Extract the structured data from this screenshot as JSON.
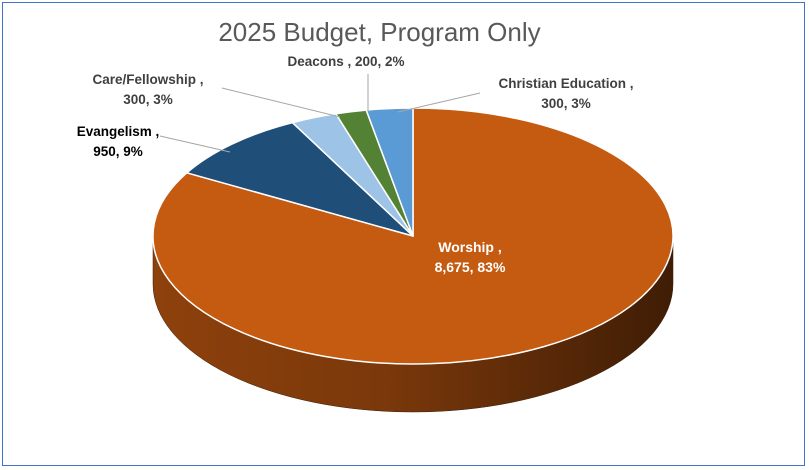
{
  "chart_data": {
    "type": "pie",
    "title": "2025 Budget, Program Only",
    "slices": [
      {
        "name": "Worship",
        "value": 8675,
        "percent": 83,
        "color": "#c55a11",
        "label_line1": "Worship    ,",
        "label_line2": "8,675, 83%"
      },
      {
        "name": "Evangelism",
        "value": 950,
        "percent": 9,
        "color": "#1f4e79",
        "label_line1": "Evangelism    ,",
        "label_line2": "950, 9%"
      },
      {
        "name": "Care/Fellowship",
        "value": 300,
        "percent": 3,
        "color": "#9dc3e6",
        "label_line1": "Care/Fellowship ,",
        "label_line2": "300, 3%"
      },
      {
        "name": "Deacons",
        "value": 200,
        "percent": 2,
        "color": "#548235",
        "label_line1": "Deacons , 200, 2%",
        "label_line2": ""
      },
      {
        "name": "Christian Education",
        "value": 300,
        "percent": 3,
        "color": "#5b9bd5",
        "label_line1": "Christian Education ,",
        "label_line2": "300, 3%"
      }
    ],
    "style": "3d-pie",
    "legend": "none"
  }
}
